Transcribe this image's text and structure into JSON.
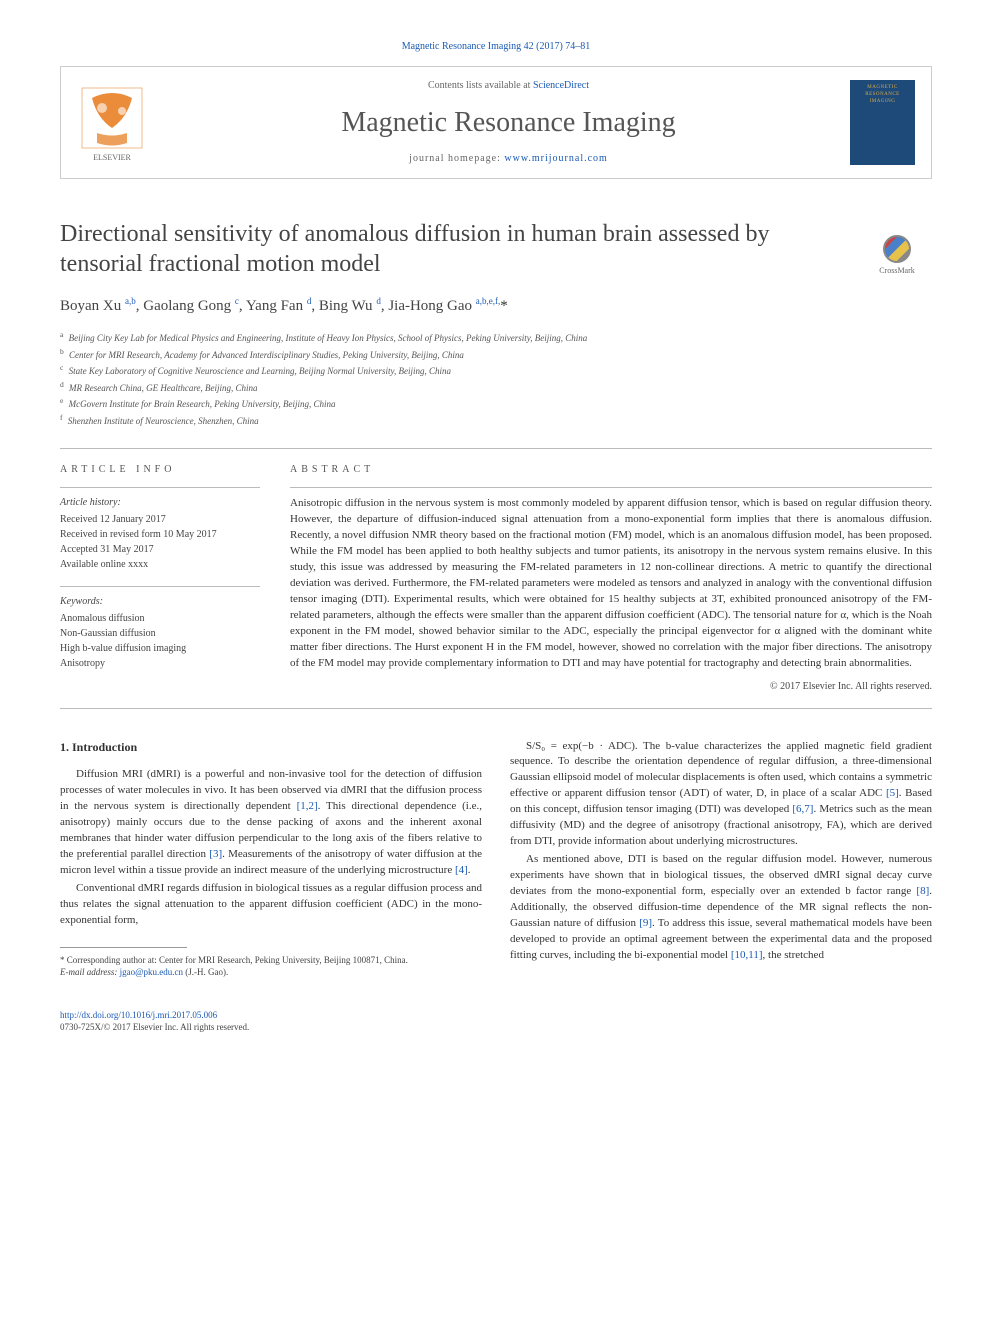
{
  "journal_ref": "Magnetic Resonance Imaging 42 (2017) 74–81",
  "header": {
    "contents_prefix": "Contents lists available at ",
    "contents_link": "ScienceDirect",
    "journal_name": "Magnetic Resonance Imaging",
    "homepage_prefix": "journal homepage: ",
    "homepage_link": "www.mrijournal.com",
    "cover_text": "MAGNETIC RESONANCE IMAGING"
  },
  "crossmark_label": "CrossMark",
  "article": {
    "title": "Directional sensitivity of anomalous diffusion in human brain assessed by tensorial fractional motion model",
    "authors_html": "Boyan Xu <sup>a,b</sup>, Gaolang Gong <sup>c</sup>, Yang Fan <sup>d</sup>, Bing Wu <sup>d</sup>, Jia-Hong Gao <sup>a,b,e,f,</sup><span class='star'>*</span>",
    "affiliations": [
      {
        "sup": "a",
        "text": "Beijing City Key Lab for Medical Physics and Engineering, Institute of Heavy Ion Physics, School of Physics, Peking University, Beijing, China"
      },
      {
        "sup": "b",
        "text": "Center for MRI Research, Academy for Advanced Interdisciplinary Studies, Peking University, Beijing, China"
      },
      {
        "sup": "c",
        "text": "State Key Laboratory of Cognitive Neuroscience and Learning, Beijing Normal University, Beijing, China"
      },
      {
        "sup": "d",
        "text": "MR Research China, GE Healthcare, Beijing, China"
      },
      {
        "sup": "e",
        "text": "McGovern Institute for Brain Research, Peking University, Beijing, China"
      },
      {
        "sup": "f",
        "text": "Shenzhen Institute of Neuroscience, Shenzhen, China"
      }
    ]
  },
  "article_info": {
    "header": "ARTICLE INFO",
    "history_label": "Article history:",
    "history_lines": "Received 12 January 2017\nReceived in revised form 10 May 2017\nAccepted 31 May 2017\nAvailable online xxxx",
    "keywords_label": "Keywords:",
    "keywords_lines": "Anomalous diffusion\nNon-Gaussian diffusion\nHigh b-value diffusion imaging\nAnisotropy"
  },
  "abstract": {
    "header": "ABSTRACT",
    "text": "Anisotropic diffusion in the nervous system is most commonly modeled by apparent diffusion tensor, which is based on regular diffusion theory. However, the departure of diffusion-induced signal attenuation from a mono-exponential form implies that there is anomalous diffusion. Recently, a novel diffusion NMR theory based on the fractional motion (FM) model, which is an anomalous diffusion model, has been proposed. While the FM model has been applied to both healthy subjects and tumor patients, its anisotropy in the nervous system remains elusive. In this study, this issue was addressed by measuring the FM-related parameters in 12 non-collinear directions. A metric to quantify the directional deviation was derived. Furthermore, the FM-related parameters were modeled as tensors and analyzed in analogy with the conventional diffusion tensor imaging (DTI). Experimental results, which were obtained for 15 healthy subjects at 3T, exhibited pronounced anisotropy of the FM-related parameters, although the effects were smaller than the apparent diffusion coefficient (ADC). The tensorial nature for α, which is the Noah exponent in the FM model, showed behavior similar to the ADC, especially the principal eigenvector for α aligned with the dominant white matter fiber directions. The Hurst exponent H in the FM model, however, showed no correlation with the major fiber directions. The anisotropy of the FM model may provide complementary information to DTI and may have potential for tractography and detecting brain abnormalities.",
    "copyright": "© 2017 Elsevier Inc. All rights reserved."
  },
  "body": {
    "intro_heading": "1. Introduction",
    "col1_paras": [
      "Diffusion MRI (dMRI) is a powerful and non-invasive tool for the detection of diffusion processes of water molecules in vivo. It has been observed via dMRI that the diffusion process in the nervous system is directionally dependent [1,2]. This directional dependence (i.e., anisotropy) mainly occurs due to the dense packing of axons and the inherent axonal membranes that hinder water diffusion perpendicular to the long axis of the fibers relative to the preferential parallel direction [3]. Measurements of the anisotropy of water diffusion at the micron level within a tissue provide an indirect measure of the underlying microstructure [4].",
      "Conventional dMRI regards diffusion in biological tissues as a regular diffusion process and thus relates the signal attenuation to the apparent diffusion coefficient (ADC) in the mono-exponential form,"
    ],
    "col2_paras": [
      "S/S₀ = exp(−b · ADC). The b-value characterizes the applied magnetic field gradient sequence. To describe the orientation dependence of regular diffusion, a three-dimensional Gaussian ellipsoid model of molecular displacements is often used, which contains a symmetric effective or apparent diffusion tensor (ADT) of water, D, in place of a scalar ADC [5]. Based on this concept, diffusion tensor imaging (DTI) was developed [6,7]. Metrics such as the mean diffusivity (MD) and the degree of anisotropy (fractional anisotropy, FA), which are derived from DTI, provide information about underlying microstructures.",
      "As mentioned above, DTI is based on the regular diffusion model. However, numerous experiments have shown that in biological tissues, the observed dMRI signal decay curve deviates from the mono-exponential form, especially over an extended b factor range [8]. Additionally, the observed diffusion-time dependence of the MR signal reflects the non-Gaussian nature of diffusion [9]. To address this issue, several mathematical models have been developed to provide an optimal agreement between the experimental data and the proposed fitting curves, including the bi-exponential model [10,11], the stretched"
    ],
    "refs_col1": {
      "r12": "[1,2]",
      "r3": "[3]",
      "r4": "[4]"
    },
    "refs_col2": {
      "r5": "[5]",
      "r67": "[6,7]",
      "r8": "[8]",
      "r9": "[9]",
      "r1011": "[10,11]"
    }
  },
  "footnotes": {
    "corr_label": "* Corresponding author at: ",
    "corr_text": "Center for MRI Research, Peking University, Beijing 100871, China.",
    "email_label": "E-mail address: ",
    "email": "jgao@pku.edu.cn",
    "email_suffix": " (J.-H. Gao)."
  },
  "footer": {
    "doi": "http://dx.doi.org/10.1016/j.mri.2017.05.006",
    "issn_line": "0730-725X/© 2017 Elsevier Inc. All rights reserved."
  },
  "colors": {
    "link": "#1a5ab3",
    "text": "#333333",
    "border": "#bbbbbb",
    "elsevier_orange": "#e67817",
    "cover_bg": "#1e4a7a",
    "cover_gold": "#d4a84a"
  }
}
